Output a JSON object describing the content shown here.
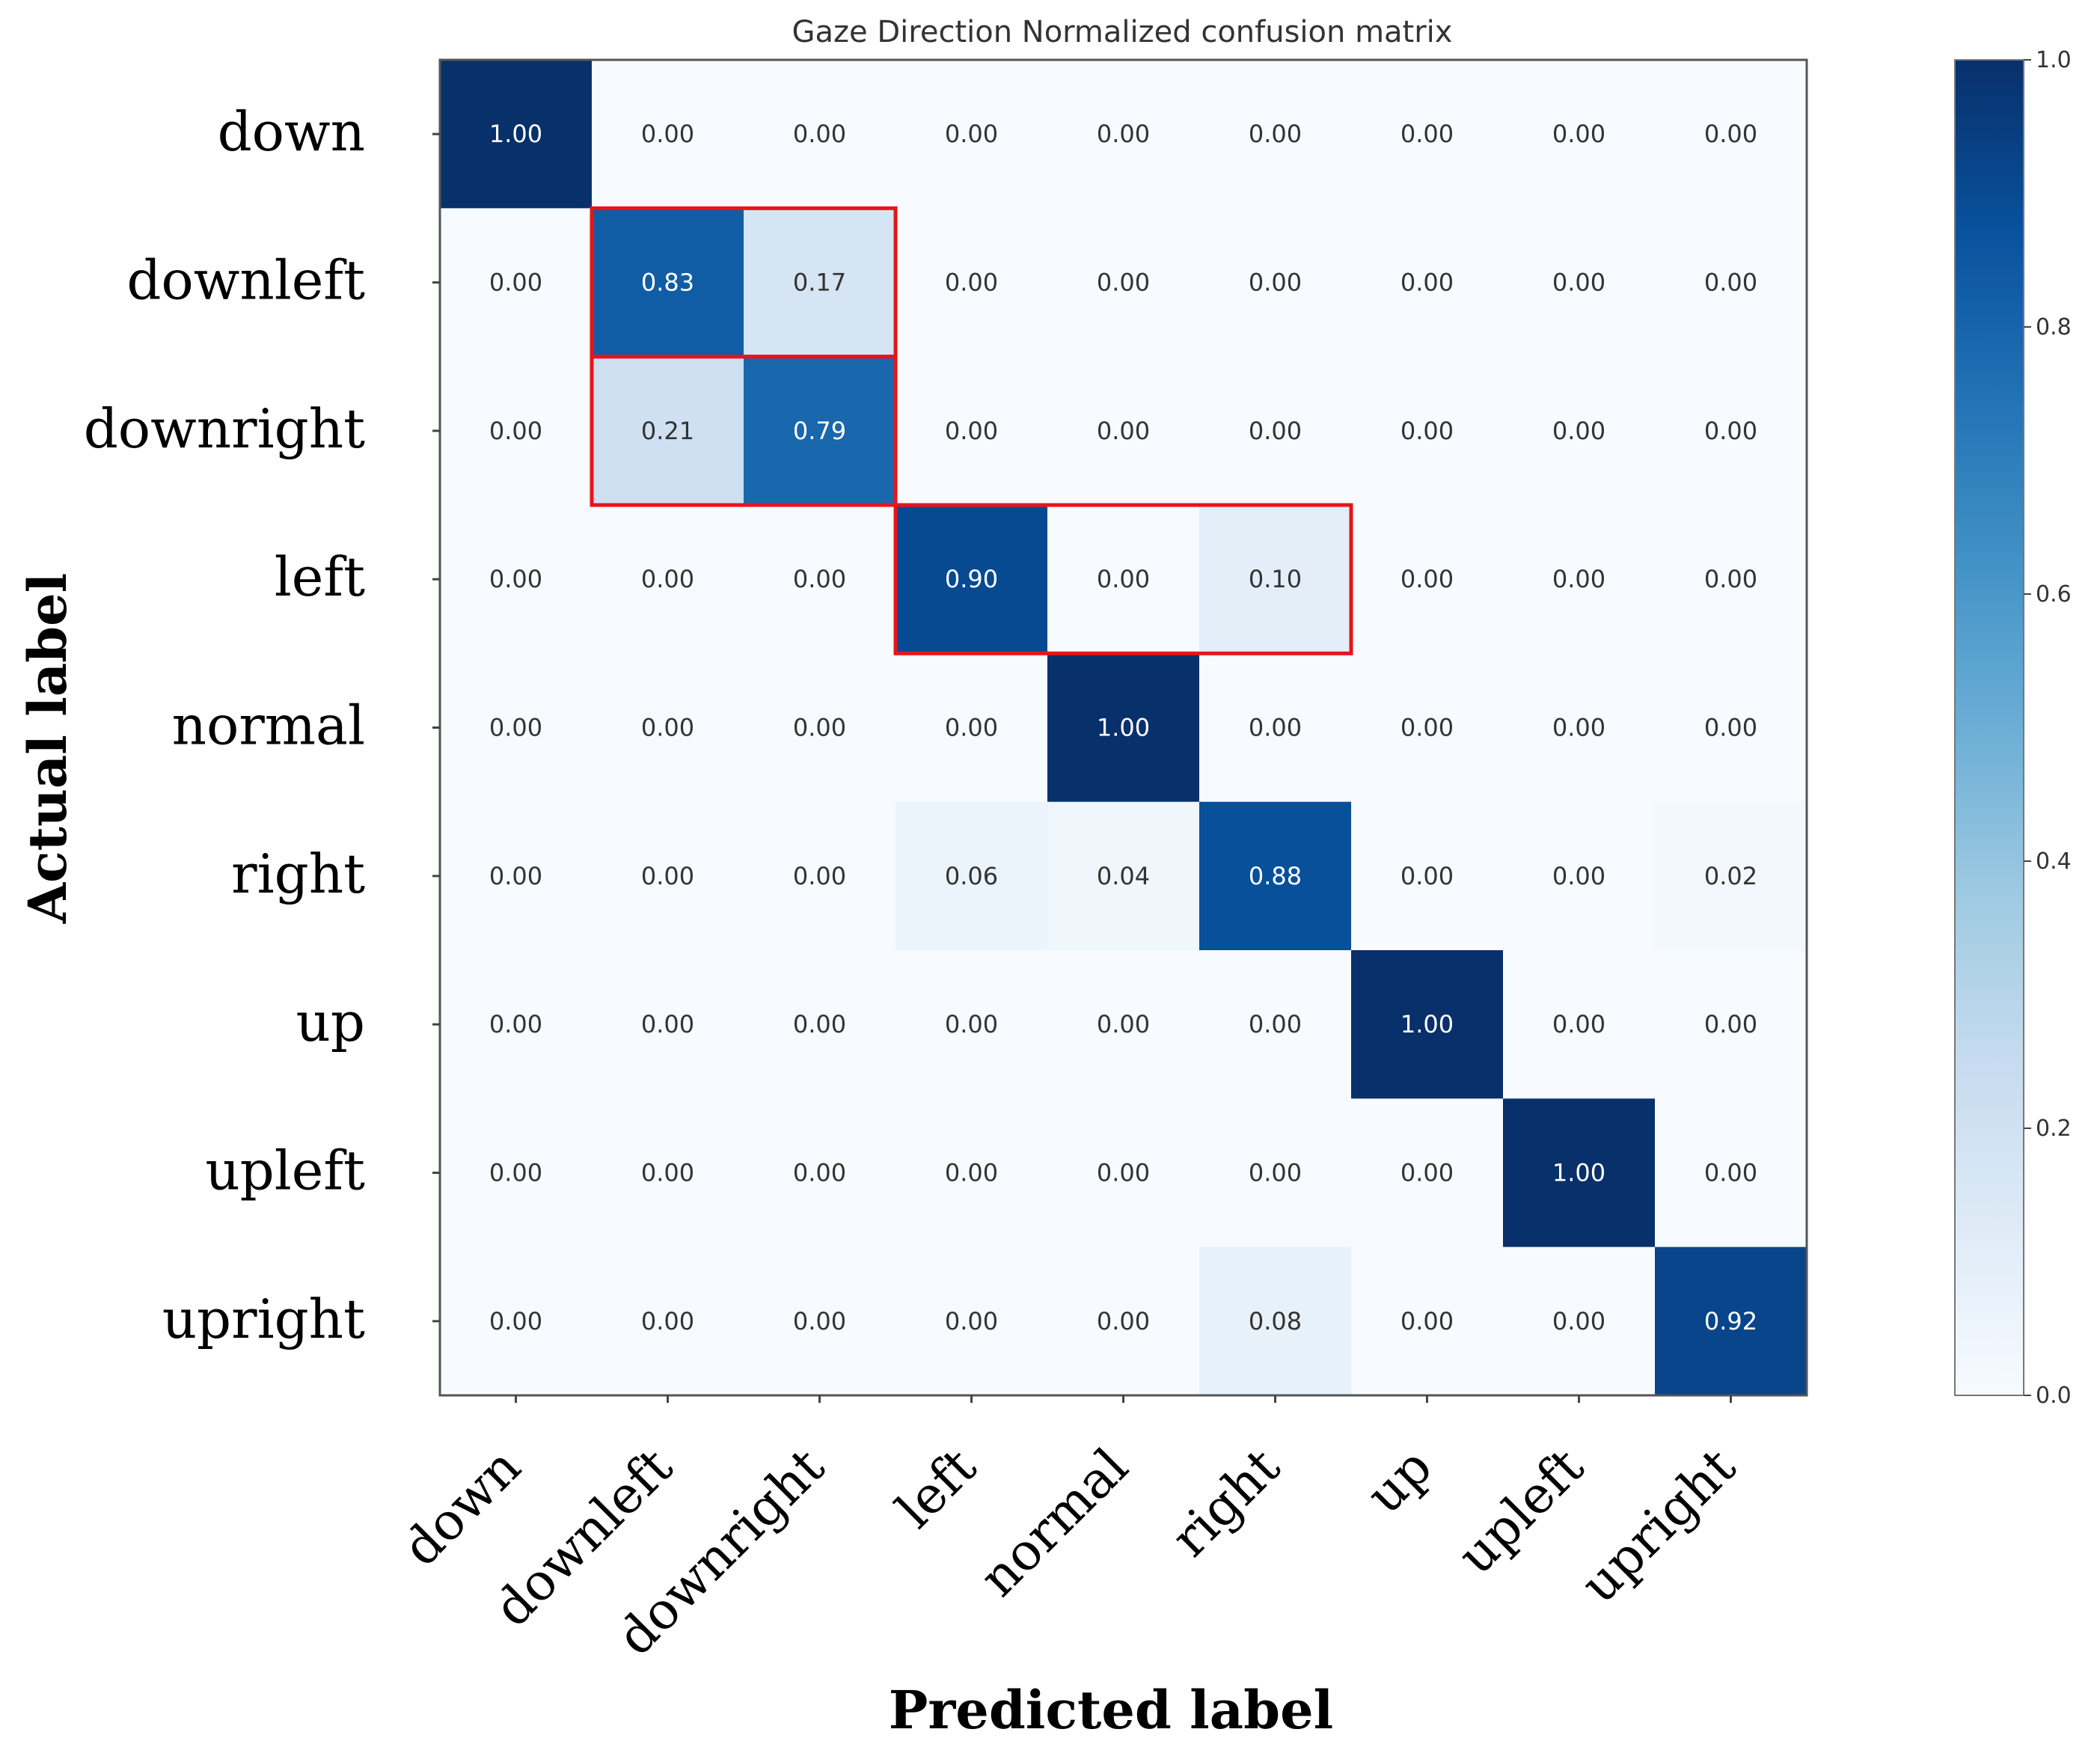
{
  "chart_data": {
    "type": "heatmap",
    "title": "Gaze Direction Normalized confusion matrix",
    "xlabel": "Predicted label",
    "ylabel": "Actual  label",
    "x_categories": [
      "down",
      "downleft",
      "downright",
      "left",
      "normal",
      "right",
      "up",
      "upleft",
      "upright"
    ],
    "y_categories": [
      "down",
      "downleft",
      "downright",
      "left",
      "normal",
      "right",
      "up",
      "upleft",
      "upright"
    ],
    "values": [
      [
        1.0,
        0.0,
        0.0,
        0.0,
        0.0,
        0.0,
        0.0,
        0.0,
        0.0
      ],
      [
        0.0,
        0.83,
        0.17,
        0.0,
        0.0,
        0.0,
        0.0,
        0.0,
        0.0
      ],
      [
        0.0,
        0.21,
        0.79,
        0.0,
        0.0,
        0.0,
        0.0,
        0.0,
        0.0
      ],
      [
        0.0,
        0.0,
        0.0,
        0.9,
        0.0,
        0.1,
        0.0,
        0.0,
        0.0
      ],
      [
        0.0,
        0.0,
        0.0,
        0.0,
        1.0,
        0.0,
        0.0,
        0.0,
        0.0
      ],
      [
        0.0,
        0.0,
        0.0,
        0.06,
        0.04,
        0.88,
        0.0,
        0.0,
        0.02
      ],
      [
        0.0,
        0.0,
        0.0,
        0.0,
        0.0,
        0.0,
        1.0,
        0.0,
        0.0
      ],
      [
        0.0,
        0.0,
        0.0,
        0.0,
        0.0,
        0.0,
        0.0,
        1.0,
        0.0
      ],
      [
        0.0,
        0.0,
        0.0,
        0.0,
        0.0,
        0.08,
        0.0,
        0.0,
        0.92
      ]
    ],
    "colormap": "Blues",
    "colorbar": {
      "range": [
        0.0,
        1.0
      ],
      "ticks": [
        "0.0",
        "0.2",
        "0.4",
        "0.6",
        "0.8",
        "1.0"
      ]
    },
    "highlight_boxes": [
      {
        "rows": [
          1,
          1
        ],
        "cols": [
          1,
          2
        ]
      },
      {
        "rows": [
          2,
          2
        ],
        "cols": [
          1,
          2
        ]
      },
      {
        "rows": [
          3,
          3
        ],
        "cols": [
          3,
          5
        ]
      }
    ],
    "highlight_color": "#e8141b"
  }
}
